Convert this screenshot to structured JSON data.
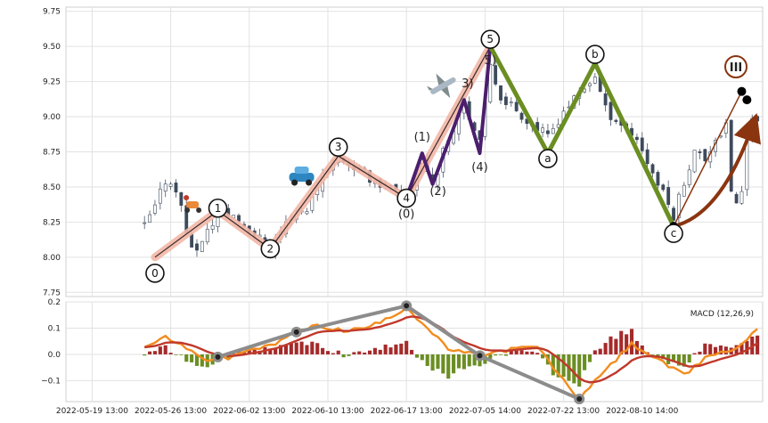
{
  "chart_data": [
    {
      "type": "candlestick",
      "title": "",
      "xlabel": "",
      "ylabel": "",
      "ylim": [
        7.72,
        9.78
      ],
      "grid": true,
      "yticks": [
        "7.75",
        "8.00",
        "8.25",
        "8.50",
        "8.75",
        "9.00",
        "9.25",
        "9.50",
        "9.75"
      ],
      "ytick_values": [
        7.75,
        8.0,
        8.25,
        8.5,
        8.75,
        9.0,
        9.25,
        9.5,
        9.75
      ],
      "price_range": [
        8.0,
        9.5
      ],
      "wave_points": [
        {
          "label": "0",
          "i": 2,
          "price": 8.0
        },
        {
          "label": "1",
          "i": 14,
          "price": 8.33
        },
        {
          "label": "2",
          "i": 24,
          "price": 8.06
        },
        {
          "label": "3",
          "i": 37,
          "price": 8.72
        },
        {
          "label": "4",
          "i": 50,
          "price": 8.42
        },
        {
          "label": "5",
          "i": 66,
          "price": 9.5
        },
        {
          "label": "a",
          "i": 77,
          "price": 8.74
        },
        {
          "label": "b",
          "i": 86,
          "price": 9.38
        },
        {
          "label": "c",
          "i": 101,
          "price": 8.22
        }
      ],
      "subwave_points": [
        {
          "label": "(0)",
          "i": 50,
          "price": 8.42
        },
        {
          "label": "(1)",
          "i": 53,
          "price": 8.74
        },
        {
          "label": "(2)",
          "i": 55,
          "price": 8.52
        },
        {
          "label": "3)",
          "i": 61,
          "price": 9.12
        },
        {
          "label": "(4)",
          "i": 64,
          "price": 8.74
        },
        {
          "label": "5)",
          "i": 66,
          "price": 9.5
        }
      ],
      "target_label": "III",
      "target_price": 9.18,
      "icons": [
        "scooter-icon",
        "car-icon",
        "airplane-icon"
      ]
    },
    {
      "type": "line",
      "title": "",
      "legend": "MACD (12,26,9)",
      "ylim": [
        -0.18,
        0.2
      ],
      "yticks": [
        "−0.1",
        "0.0",
        "0.1",
        "0.2"
      ],
      "ytick_values": [
        -0.1,
        0.0,
        0.1,
        0.2
      ],
      "x_tick_labels": [
        "2022-05-19 13:00",
        "2022-05-26 13:00",
        "2022-06-02 13:00",
        "2022-06-10 13:00",
        "2022-06-17 13:00",
        "2022-07-05 14:00",
        "2022-07-22 13:00",
        "2022-08-10 14:00"
      ],
      "x_tick_positions": [
        -10,
        5,
        20,
        35,
        50,
        65,
        80,
        95
      ],
      "divergence_points": [
        {
          "i": 14,
          "value": -0.01
        },
        {
          "i": 29,
          "value": 0.085
        },
        {
          "i": 50,
          "value": 0.185
        },
        {
          "i": 64,
          "value": -0.005
        },
        {
          "i": 83,
          "value": -0.17
        }
      ]
    }
  ]
}
